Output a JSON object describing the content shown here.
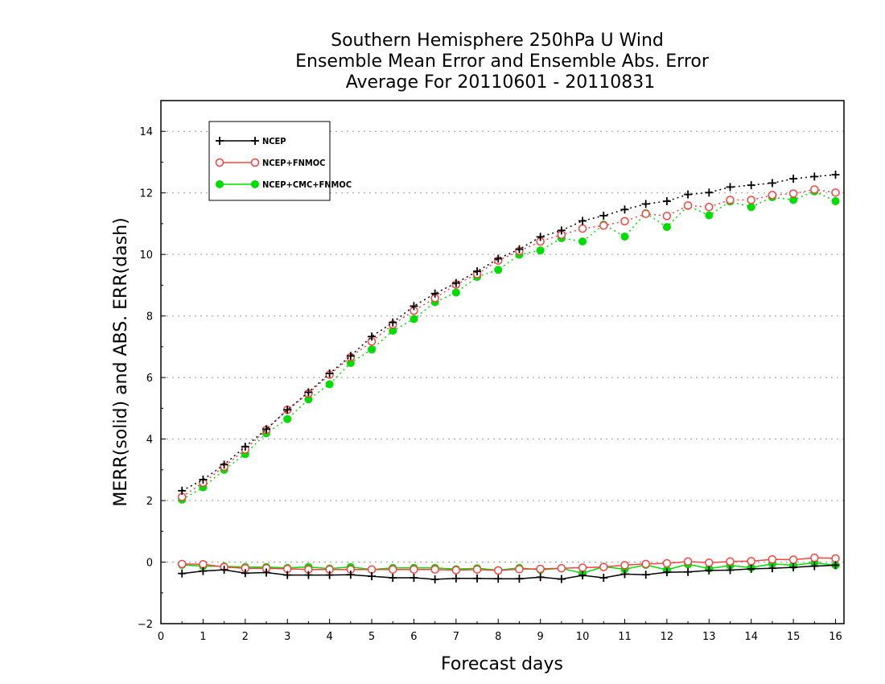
{
  "chart_data": {
    "type": "line",
    "title_lines": [
      "Southern Hemisphere 250hPa U Wind",
      "Ensemble Mean Error and Ensemble Abs. Error",
      "Average For 20110601 - 20110831"
    ],
    "xlabel": "Forecast days",
    "ylabel": "MERR(solid) and ABS. ERR(dash)",
    "xlim": [
      0,
      16.2
    ],
    "ylim": [
      -2,
      15
    ],
    "xticks": [
      0,
      1,
      2,
      3,
      4,
      5,
      6,
      7,
      8,
      9,
      10,
      11,
      12,
      13,
      14,
      15,
      16
    ],
    "yticks": [
      -2,
      0,
      2,
      4,
      6,
      8,
      10,
      12,
      14
    ],
    "grid": "horizontal dotted at y ticks",
    "legend_position": "top-left",
    "x": [
      0.5,
      1,
      1.5,
      2,
      2.5,
      3,
      3.5,
      4,
      4.5,
      5,
      5.5,
      6,
      6.5,
      7,
      7.5,
      8,
      8.5,
      9,
      9.5,
      10,
      10.5,
      11,
      11.5,
      12,
      12.5,
      13,
      13.5,
      14,
      14.5,
      15,
      15.5,
      16
    ],
    "series": [
      {
        "name": "NCEP",
        "color": "#000000",
        "marker": "plus",
        "abs_err": [
          2.32,
          2.68,
          3.17,
          3.75,
          4.32,
          4.95,
          5.52,
          6.13,
          6.7,
          7.33,
          7.79,
          8.32,
          8.73,
          9.07,
          9.45,
          9.86,
          10.17,
          10.57,
          10.78,
          11.09,
          11.26,
          11.46,
          11.64,
          11.73,
          11.95,
          12.01,
          12.19,
          12.25,
          12.32,
          12.46,
          12.53,
          12.59
        ],
        "mean_err": [
          -0.37,
          -0.29,
          -0.25,
          -0.36,
          -0.34,
          -0.42,
          -0.42,
          -0.42,
          -0.41,
          -0.46,
          -0.51,
          -0.51,
          -0.56,
          -0.53,
          -0.53,
          -0.54,
          -0.54,
          -0.49,
          -0.55,
          -0.43,
          -0.51,
          -0.39,
          -0.41,
          -0.33,
          -0.32,
          -0.27,
          -0.26,
          -0.22,
          -0.2,
          -0.17,
          -0.13,
          -0.1
        ]
      },
      {
        "name": "NCEP+FNMOC",
        "color": "#ff4040",
        "marker": "open-circle",
        "abs_err": [
          2.12,
          2.58,
          3.1,
          3.66,
          4.3,
          4.95,
          5.48,
          6.09,
          6.66,
          7.17,
          7.72,
          8.17,
          8.58,
          9.02,
          9.36,
          9.8,
          10.11,
          10.42,
          10.64,
          10.84,
          10.94,
          11.08,
          11.32,
          11.25,
          11.59,
          11.54,
          11.77,
          11.77,
          11.93,
          11.98,
          12.11,
          12.01
        ],
        "mean_err": [
          -0.06,
          -0.07,
          -0.16,
          -0.2,
          -0.2,
          -0.22,
          -0.24,
          -0.24,
          -0.24,
          -0.24,
          -0.24,
          -0.24,
          -0.24,
          -0.26,
          -0.24,
          -0.27,
          -0.23,
          -0.22,
          -0.2,
          -0.18,
          -0.16,
          -0.1,
          -0.06,
          -0.04,
          0.02,
          -0.02,
          0.02,
          0.03,
          0.09,
          0.08,
          0.14,
          0.12
        ]
      },
      {
        "name": "NCEP+CMC+FNMOC",
        "color": "#00dd00",
        "marker": "filled-circle",
        "abs_err": [
          2.03,
          2.43,
          3.0,
          3.51,
          4.19,
          4.65,
          5.29,
          5.78,
          6.47,
          6.91,
          7.52,
          7.9,
          8.45,
          8.76,
          9.27,
          9.5,
          9.99,
          10.13,
          10.53,
          10.42,
          10.97,
          10.58,
          11.34,
          10.89,
          11.58,
          11.27,
          11.72,
          11.54,
          11.86,
          11.77,
          12.05,
          11.73
        ],
        "mean_err": [
          -0.09,
          -0.13,
          -0.14,
          -0.16,
          -0.16,
          -0.19,
          -0.16,
          -0.21,
          -0.16,
          -0.24,
          -0.19,
          -0.19,
          -0.19,
          -0.23,
          -0.2,
          -0.26,
          -0.19,
          -0.25,
          -0.2,
          -0.36,
          -0.15,
          -0.23,
          -0.09,
          -0.25,
          -0.07,
          -0.21,
          -0.11,
          -0.18,
          -0.06,
          -0.1,
          -0.02,
          -0.1
        ]
      }
    ]
  }
}
